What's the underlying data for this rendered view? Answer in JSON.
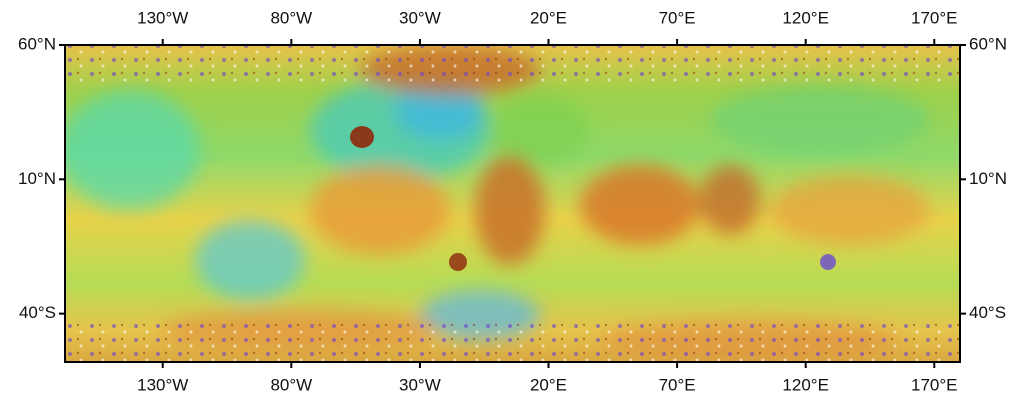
{
  "chart_data": {
    "type": "map",
    "xlim": [
      -168,
      180
    ],
    "ylim": [
      -58,
      60
    ],
    "xticks": [
      {
        "value": -130,
        "label": "130°W"
      },
      {
        "value": -80,
        "label": "80°W"
      },
      {
        "value": -30,
        "label": "30°W"
      },
      {
        "value": 20,
        "label": "20°E"
      },
      {
        "value": 70,
        "label": "70°E"
      },
      {
        "value": 120,
        "label": "120°E"
      },
      {
        "value": 170,
        "label": "170°E"
      }
    ],
    "yticks": [
      {
        "value": 60,
        "label": "60°N"
      },
      {
        "value": 10,
        "label": "10°N"
      },
      {
        "value": -40,
        "label": "40°S"
      }
    ]
  }
}
